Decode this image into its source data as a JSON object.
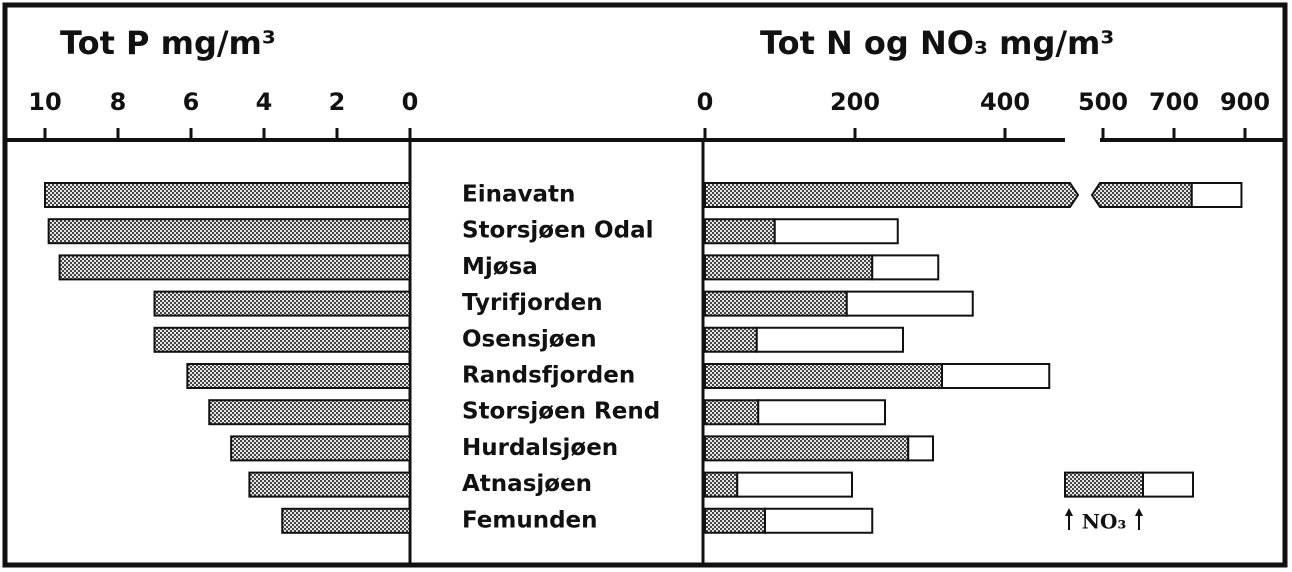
{
  "chart_data": {
    "type": "butterfly",
    "categories": [
      "Einavatn",
      "Storsjøen Odal",
      "Mjøsa",
      "Tyrifjorden",
      "Osensjøen",
      "Randsfjorden",
      "Storsjøen Rend",
      "Hurdalsjøen",
      "Atnasjøen",
      "Femunden"
    ],
    "left": {
      "title": "Tot P  mg/m³",
      "xlim": [
        0,
        10
      ],
      "reversed": true,
      "xticks": [
        10,
        8,
        6,
        4,
        2,
        0
      ],
      "series": [
        {
          "color": "#8a8a8a",
          "pattern": true,
          "values": [
            10.0,
            9.9,
            9.6,
            7.0,
            7.0,
            6.1,
            5.5,
            4.9,
            4.4,
            3.5
          ]
        }
      ]
    },
    "right": {
      "title": "Tot N og NO₃   mg/m³",
      "xlim": [
        0,
        480
      ],
      "xticks": [
        0,
        200,
        400
      ],
      "x2lim": [
        500,
        900
      ],
      "x2ticks": [
        500,
        700,
        900
      ],
      "series": [
        {
          "name": "NO₃",
          "color": "#8a8a8a",
          "pattern": true,
          "values": [
            750,
            93,
            223,
            189,
            69,
            316,
            71,
            271,
            43,
            80
          ]
        },
        {
          "color": "#ffffff",
          "values": [
            890,
            257,
            311,
            357,
            264,
            459,
            240,
            304,
            196,
            223
          ]
        }
      ]
    }
  }
}
